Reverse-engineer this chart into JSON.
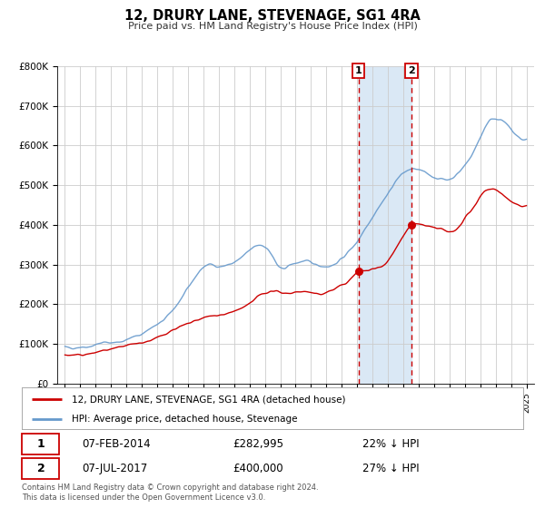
{
  "title": "12, DRURY LANE, STEVENAGE, SG1 4RA",
  "subtitle": "Price paid vs. HM Land Registry's House Price Index (HPI)",
  "legend_label_red": "12, DRURY LANE, STEVENAGE, SG1 4RA (detached house)",
  "legend_label_blue": "HPI: Average price, detached house, Stevenage",
  "marker1_date": 2014.09,
  "marker1_label": "07-FEB-2014",
  "marker1_price": "£282,995",
  "marker1_hpi": "22% ↓ HPI",
  "marker1_value": 282995,
  "marker2_date": 2017.52,
  "marker2_label": "07-JUL-2017",
  "marker2_price": "£400,000",
  "marker2_hpi": "27% ↓ HPI",
  "marker2_value": 400000,
  "footer": "Contains HM Land Registry data © Crown copyright and database right 2024.\nThis data is licensed under the Open Government Licence v3.0.",
  "ylim": [
    0,
    800000
  ],
  "xlim": [
    1994.5,
    2025.5
  ],
  "background_color": "#ffffff",
  "grid_color": "#cccccc",
  "shaded_color": "#dae8f5",
  "red_color": "#cc0000",
  "blue_color": "#6699cc",
  "dashed_color": "#cc0000"
}
